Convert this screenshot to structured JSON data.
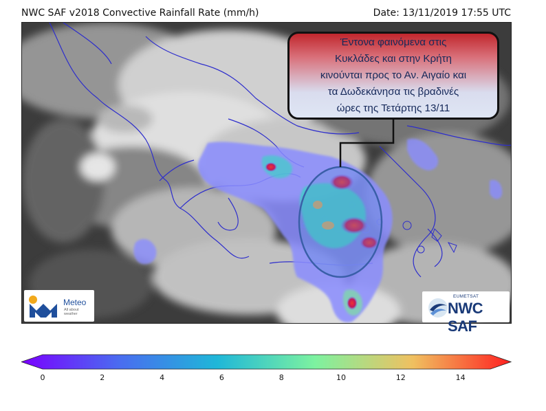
{
  "header": {
    "title": "NWC SAF v2018 Convective Rainfall Rate (mm/h)",
    "date": "Date: 13/11/2019 17:55 UTC"
  },
  "callout": {
    "lines": [
      "Έντονα φαινόμενα στις",
      "Κυκλάδες και στην Κρήτη",
      "κινούνται προς το Αν. Αιγαίο και",
      "τα Δωδεκάνησα τις βραδινές",
      "ώρες της Τετάρτης 13/11"
    ],
    "colors": {
      "top": "#c1272d",
      "bottom": "#dfe6f4",
      "text": "#16295a"
    }
  },
  "logos": {
    "meteo": {
      "name": "Meteo",
      "tagline": "All about weather",
      "icon": "meteo-m-logo"
    },
    "nwcsaf": {
      "org": "EUMETSAT",
      "name": "NWC SAF",
      "icon": "eumetsat-swoosh-logo"
    }
  },
  "colorbar": {
    "ticks": [
      "0",
      "2",
      "4",
      "6",
      "8",
      "10",
      "12",
      "14"
    ],
    "range": [
      0,
      15
    ],
    "stops": [
      "#7a00ff",
      "#4a6cf0",
      "#1fb7d8",
      "#7df2a0",
      "#f0c060",
      "#ff2020"
    ]
  },
  "map": {
    "region": "Greece / Aegean Sea",
    "highlight": "Cyclades - Crete convective cells",
    "colors": {
      "coast": "#2d2dcc",
      "rain_low": "#8a8dff",
      "rain_mid": "#3fd0c8",
      "rain_high": "#e8302a"
    }
  }
}
